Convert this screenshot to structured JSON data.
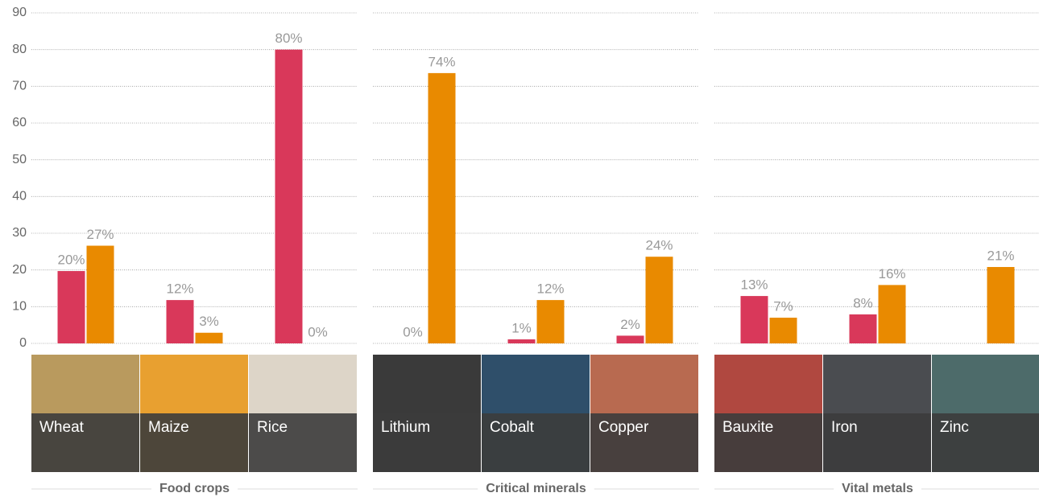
{
  "chart_data": [
    {
      "type": "bar",
      "title": "Food crops",
      "categories": [
        "Wheat",
        "Maize",
        "Rice"
      ],
      "series": [
        {
          "color": "#d9385a",
          "values": [
            19.7,
            11.8,
            80
          ],
          "value_labels": [
            "20%",
            "12%",
            "80%"
          ]
        },
        {
          "color": "#e98a00",
          "values": [
            26.6,
            2.9,
            0
          ],
          "value_labels": [
            "27%",
            "3%",
            "0%"
          ]
        }
      ],
      "ylim": [
        0,
        90
      ],
      "yticks": [
        0,
        10,
        20,
        30,
        40,
        50,
        60,
        70,
        80,
        90
      ],
      "grid": true
    },
    {
      "type": "bar",
      "title": "Critical minerals",
      "categories": [
        "Lithium",
        "Cobalt",
        "Copper"
      ],
      "series": [
        {
          "color": "#d9385a",
          "values": [
            0,
            1.1,
            2.1
          ],
          "value_labels": [
            "0%",
            "1%",
            "2%"
          ]
        },
        {
          "color": "#e98a00",
          "values": [
            73.6,
            11.8,
            23.6
          ],
          "value_labels": [
            "74%",
            "12%",
            "24%"
          ]
        }
      ],
      "ylim": [
        0,
        90
      ],
      "grid": true
    },
    {
      "type": "bar",
      "title": "Vital metals",
      "categories": [
        "Bauxite",
        "Iron",
        "Zinc"
      ],
      "series": [
        {
          "color": "#d9385a",
          "values": [
            12.9,
            7.9,
            0
          ],
          "value_labels": [
            "13%",
            "8%",
            ""
          ]
        },
        {
          "color": "#e98a00",
          "values": [
            7.0,
            15.9,
            20.8
          ],
          "value_labels": [
            "7%",
            "16%",
            "21%"
          ]
        }
      ],
      "ylim": [
        0,
        90
      ],
      "grid": true
    }
  ]
}
